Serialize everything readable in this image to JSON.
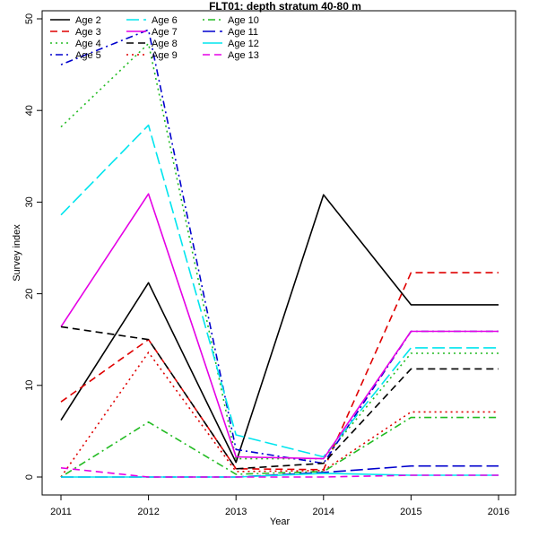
{
  "chart_data": {
    "type": "line",
    "title": "FLT01:  depth stratum 40-80 m",
    "xlabel": "Year",
    "ylabel": "Survey index",
    "x": [
      2011,
      2012,
      2013,
      2014,
      2015,
      2016
    ],
    "xlim": [
      2011,
      2016
    ],
    "ylim": [
      0,
      50
    ],
    "yticks": [
      0,
      10,
      20,
      30,
      40,
      50
    ],
    "grid": false,
    "legend": "top-left",
    "series": [
      {
        "name": "Age 2",
        "color": "#000000",
        "dash": "solid",
        "values": [
          6.2,
          21.2,
          1.6,
          30.8,
          18.8,
          18.8
        ]
      },
      {
        "name": "Age 3",
        "color": "#DF0000",
        "dash": "dashed",
        "values": [
          8.2,
          15.0,
          0.9,
          0.8,
          22.3,
          22.3
        ]
      },
      {
        "name": "Age 4",
        "color": "#22BB22",
        "dash": "dotted",
        "values": [
          38.2,
          47.3,
          2.0,
          2.0,
          13.5,
          13.5
        ]
      },
      {
        "name": "Age 5",
        "color": "#0000CD",
        "dash": "dotdash",
        "values": [
          45.0,
          48.8,
          3.0,
          1.5,
          15.9,
          15.9
        ]
      },
      {
        "name": "Age 6",
        "color": "#00E5EE",
        "dash": "longdash",
        "values": [
          28.6,
          38.4,
          4.6,
          2.2,
          14.1,
          14.1
        ]
      },
      {
        "name": "Age 7",
        "color": "#E500E5",
        "dash": "solid",
        "values": [
          16.4,
          30.9,
          2.2,
          2.0,
          15.9,
          15.9
        ]
      },
      {
        "name": "Age 8",
        "color": "#000000",
        "dash": "dashed",
        "values": [
          16.4,
          15.0,
          0.9,
          1.5,
          11.8,
          11.8
        ]
      },
      {
        "name": "Age 9",
        "color": "#DF0000",
        "dash": "dotted",
        "values": [
          0.0,
          13.6,
          0.6,
          0.7,
          7.1,
          7.1
        ]
      },
      {
        "name": "Age 10",
        "color": "#22BB22",
        "dash": "dotdash",
        "values": [
          0.0,
          6.0,
          0.3,
          0.6,
          6.5,
          6.5
        ]
      },
      {
        "name": "Age 11",
        "color": "#0000CD",
        "dash": "longdash",
        "values": [
          0.0,
          0.0,
          0.0,
          0.5,
          1.2,
          1.2
        ]
      },
      {
        "name": "Age 12",
        "color": "#00E5EE",
        "dash": "solid",
        "values": [
          0.0,
          0.0,
          0.0,
          0.4,
          0.2,
          0.2
        ]
      },
      {
        "name": "Age 13",
        "color": "#E500E5",
        "dash": "dashed",
        "values": [
          1.0,
          0.0,
          0.0,
          0.0,
          0.2,
          0.2
        ]
      }
    ]
  }
}
